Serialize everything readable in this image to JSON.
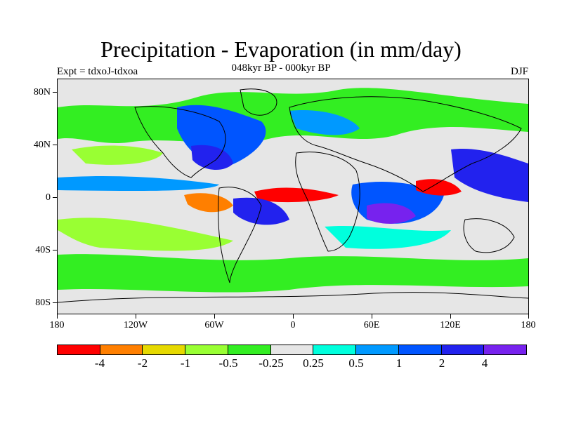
{
  "title": "Precipitation - Evaporation (in mm/day)",
  "subtitle": "048kyr BP - 000kyr BP",
  "experiment": "Expt = tdxoJ-tdxoa",
  "season": "DJF",
  "axes": {
    "lat_labels": [
      "80N",
      "40N",
      "0",
      "40S",
      "80S"
    ],
    "lon_labels": [
      "180",
      "120W",
      "60W",
      "0",
      "60E",
      "120E",
      "180"
    ]
  },
  "colorbar": {
    "colors": [
      "#ff0000",
      "#ff7f00",
      "#e6d900",
      "#99ff33",
      "#33ee22",
      "#e6e6e6",
      "#00ffdd",
      "#0099ff",
      "#0055ff",
      "#2222ee",
      "#7722ee"
    ],
    "labels": [
      "-4",
      "-2",
      "-1",
      "-0.5",
      "-0.25",
      "0.25",
      "0.5",
      "1",
      "2",
      "4"
    ]
  }
}
